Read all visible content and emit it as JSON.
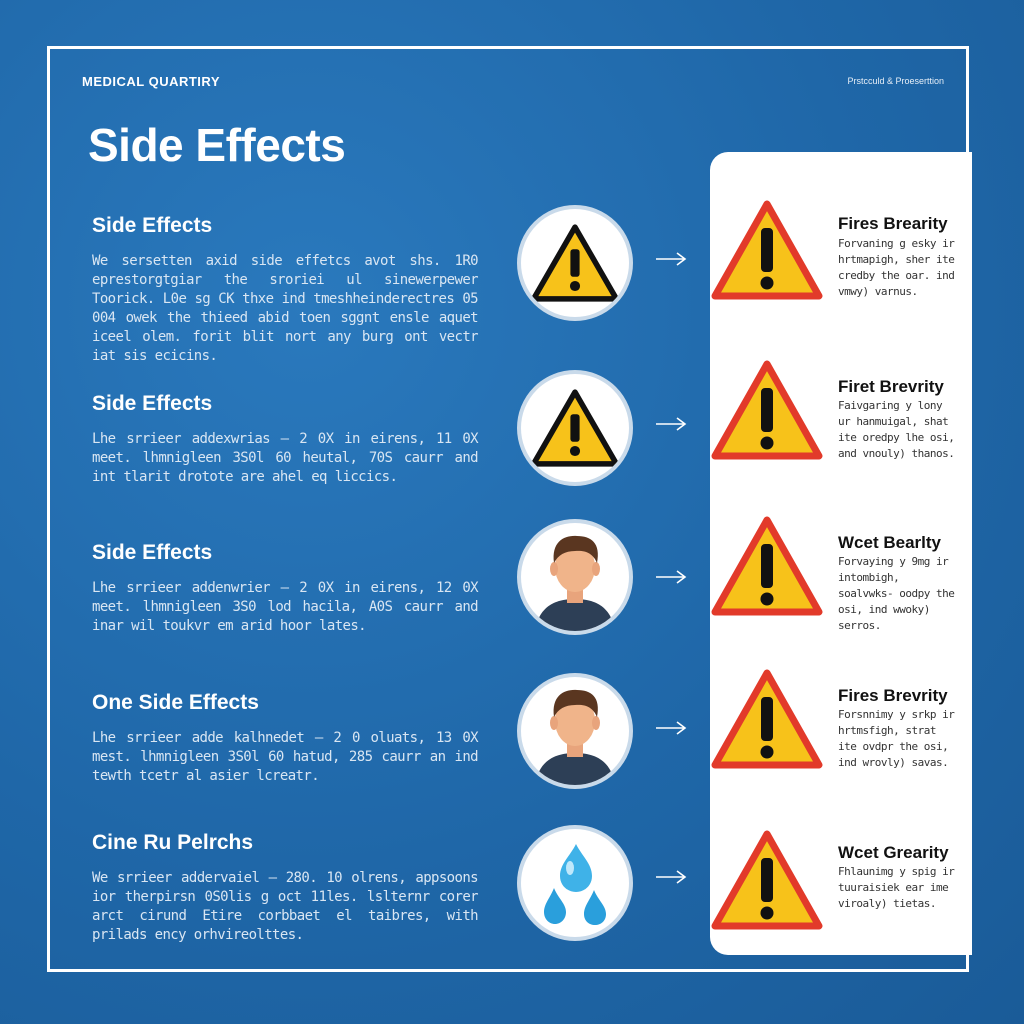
{
  "header": {
    "brand": "MEDICAL QUARTIRY",
    "top_right": "Prstcculd & Proeserttion",
    "title": "Side Effects"
  },
  "sections": [
    {
      "title": "Side Effects",
      "text": "We sersetten axid side effetcs avot shs. 1R0 eprestorgtgiar the sroriei ul sinewerpewer Toorick. L0e sg CK thxe ind tmeshheinderectres 05 004 owek the thieed abid toen sggnt ensle aquet iceel olem. forit blit nort any burg ont vectr iat sis ecicins."
    },
    {
      "title": "Side Effects",
      "text": "Lhe srrieer addexwrias – 2 0X in eirens, 11 0X meet. lhmnigleen 3S0l 60 heutal, 70S caurr and int tlarit drotote are ahel eq liccics."
    },
    {
      "title": "Side Effects",
      "text": "Lhe srrieer addenwrier – 2 0X in eirens, 12 0X meet. lhmnigleen 3S0 lod hacila, A0S caurr and inar wil toukvr em arid hoor lates."
    },
    {
      "title": "One Side Effects",
      "text": "Lhe srrieer adde kalhnedet – 2 0 oluats, 13 0X mest. lhmnigleen 3S0l 60 hatud, 285 caurr an ind tewth tcetr al asier lcreatr."
    },
    {
      "title": "Cine Ru Pelrchs",
      "text": "We srrieer addervaiel – 280. 10 olrens, appsoons ior therpirsn 0S0lis g oct 11les. lslternr corer arct cirund Etire corbbaet el taibres, with prilads ency orhvireolttes."
    }
  ],
  "cards": [
    {
      "title": "Fires Brearity",
      "text": "Forvaning g esky ir hrtmapigh, sher ite credby the oar. ind vmwy) varnus."
    },
    {
      "title": "Firet Brevrity",
      "text": "Faivgaring y lony ur hanmuigal, shat ite oredpy lhe osi, and vnouly) thanos."
    },
    {
      "title": "Wcet Bearlty",
      "text": "Forvaying y 9mg ir intombigh, soalvwks- oodpy the osi, ind wwoky) serros."
    },
    {
      "title": "Fires Brevrity",
      "text": "Forsnnimy y srkp ir hrtmsfigh, strat ite ovdpr the osi, ind wrovly) savas."
    },
    {
      "title": "Wcet Grearity",
      "text": "Fhlaunimg y spig ir tuuraisiek ear ime viroaly) tietas."
    }
  ],
  "icons": [
    "warning-icon",
    "warning-icon",
    "person-icon",
    "person-icon",
    "water-drop-icon"
  ],
  "colors": {
    "background": "#1f67a8",
    "warning_fill": "#f7c21a",
    "warning_border": "#e23a2a",
    "panel": "#ffffff"
  }
}
